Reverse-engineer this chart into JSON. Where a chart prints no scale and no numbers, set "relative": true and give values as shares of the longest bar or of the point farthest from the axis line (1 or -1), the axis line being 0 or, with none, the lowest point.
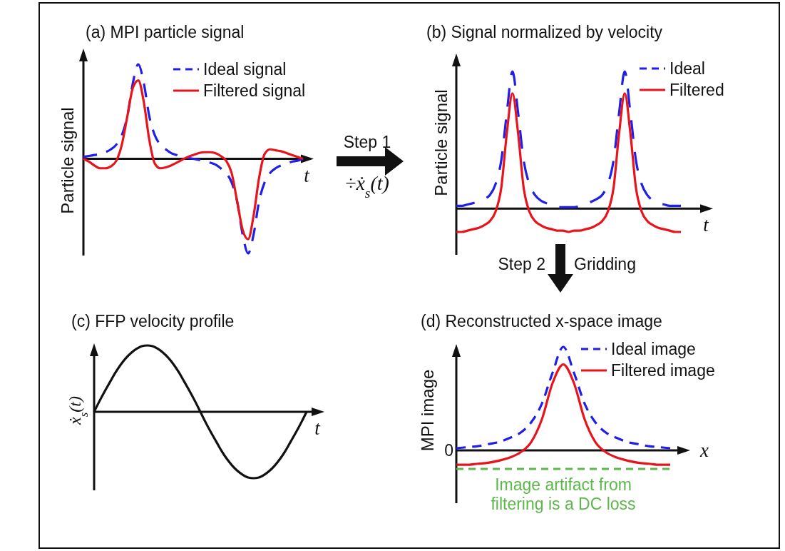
{
  "chart_data": [
    {
      "type": "line",
      "title": "(a) MPI particle signal",
      "xlabel": "t",
      "ylabel": "Particle signal",
      "relative": true,
      "legend": "top right",
      "categories": [
        null,
        null,
        null,
        null,
        null,
        null,
        null,
        null,
        null,
        null,
        null,
        null,
        null,
        null,
        null,
        null,
        null,
        null,
        null,
        null,
        null,
        null,
        null,
        null,
        null,
        null,
        null,
        null,
        null,
        null,
        null,
        null,
        null,
        null,
        null,
        null,
        null,
        null,
        null,
        null,
        null
      ],
      "series": [
        {
          "name": "Ideal signal",
          "color": "#1f1fe6",
          "line_style": "dashed",
          "values": [
            0.02,
            0.03,
            0.04,
            0.05,
            0.07,
            0.1,
            0.15,
            0.25,
            0.45,
            0.8,
            1.0,
            0.8,
            0.45,
            0.25,
            0.15,
            0.1,
            0.06,
            0.04,
            0.02,
            0.01,
            0,
            -0.01,
            -0.02,
            -0.04,
            -0.06,
            -0.1,
            -0.15,
            -0.25,
            -0.45,
            -0.8,
            -1.0,
            -0.8,
            -0.45,
            -0.25,
            -0.15,
            -0.1,
            -0.07,
            -0.05,
            -0.03,
            -0.02,
            0
          ]
        },
        {
          "name": "Filtered signal",
          "color": "#e8141c",
          "line_style": "solid",
          "values": [
            0,
            -0.03,
            -0.07,
            -0.1,
            -0.1,
            -0.08,
            -0.02,
            0.15,
            0.45,
            0.75,
            0.83,
            0.6,
            0.2,
            -0.05,
            -0.1,
            -0.09,
            -0.07,
            -0.04,
            -0.01,
            0.02,
            0.04,
            0.06,
            0.07,
            0.07,
            0.06,
            0.03,
            -0.02,
            -0.15,
            -0.45,
            -0.75,
            -0.85,
            -0.6,
            -0.2,
            0.05,
            0.1,
            0.09,
            0.08,
            0.06,
            0.04,
            0.02,
            0
          ]
        }
      ],
      "annotations": [
        "Step 1",
        "÷ẋ$_{s}$(t)"
      ]
    },
    {
      "type": "line",
      "title": "(b)  Signal normalized by velocity",
      "xlabel": "t",
      "ylabel": "Particle signal",
      "relative": true,
      "legend": "top right",
      "categories": [
        null,
        null,
        null,
        null,
        null,
        null,
        null,
        null,
        null,
        null,
        null,
        null,
        null,
        null,
        null,
        null,
        null,
        null,
        null,
        null,
        null,
        null,
        null,
        null,
        null,
        null,
        null,
        null,
        null,
        null,
        null,
        null,
        null,
        null,
        null,
        null,
        null,
        null,
        null,
        null,
        null
      ],
      "series": [
        {
          "name": "Ideal",
          "color": "#1f1fe6",
          "line_style": "dashed",
          "values": [
            0.02,
            0.02,
            0.03,
            0.04,
            0.05,
            0.07,
            0.1,
            0.18,
            0.35,
            0.7,
            1.0,
            0.7,
            0.35,
            0.18,
            0.1,
            0.06,
            0.04,
            0.02,
            0.01,
            0.01,
            0.01,
            0.01,
            0.02,
            0.03,
            0.05,
            0.07,
            0.1,
            0.18,
            0.35,
            0.7,
            1.0,
            0.7,
            0.35,
            0.18,
            0.1,
            0.06,
            0.04,
            0.03,
            0.02,
            0.02,
            0.02
          ]
        },
        {
          "name": "Filtered",
          "color": "#e8141c",
          "line_style": "solid",
          "values": [
            -0.17,
            -0.17,
            -0.16,
            -0.15,
            -0.14,
            -0.12,
            -0.09,
            -0.02,
            0.15,
            0.55,
            0.84,
            0.55,
            0.15,
            -0.02,
            -0.09,
            -0.12,
            -0.14,
            -0.15,
            -0.16,
            -0.16,
            -0.17,
            -0.16,
            -0.16,
            -0.15,
            -0.14,
            -0.12,
            -0.09,
            -0.02,
            0.15,
            0.55,
            0.84,
            0.55,
            0.15,
            -0.02,
            -0.09,
            -0.12,
            -0.14,
            -0.15,
            -0.16,
            -0.17,
            -0.17
          ]
        }
      ],
      "annotations": [
        "Step 2",
        "Gridding"
      ]
    },
    {
      "type": "line",
      "title": "(c)   FFP velocity profile",
      "xlabel": "t",
      "ylabel": "ẋ$_{s}$(t)",
      "relative": true,
      "categories": [
        null,
        null,
        null,
        null,
        null,
        null,
        null,
        null,
        null,
        null,
        null,
        null,
        null,
        null,
        null,
        null,
        null,
        null,
        null,
        null,
        null,
        null,
        null,
        null,
        null,
        null,
        null,
        null,
        null,
        null,
        null,
        null,
        null,
        null,
        null,
        null,
        null,
        null,
        null,
        null,
        null
      ],
      "series": [
        {
          "color": "#111111",
          "line_style": "solid",
          "values": [
            0,
            0.16,
            0.31,
            0.45,
            0.59,
            0.71,
            0.81,
            0.89,
            0.95,
            0.99,
            1,
            0.99,
            0.95,
            0.89,
            0.81,
            0.71,
            0.59,
            0.45,
            0.31,
            0.16,
            0,
            -0.16,
            -0.31,
            -0.45,
            -0.59,
            -0.71,
            -0.81,
            -0.89,
            -0.95,
            -0.99,
            -1,
            -0.99,
            -0.95,
            -0.89,
            -0.81,
            -0.71,
            -0.59,
            -0.45,
            -0.31,
            -0.16,
            0
          ]
        }
      ]
    },
    {
      "type": "line",
      "title": "(d) Reconstructed x-space image",
      "xlabel": "x",
      "ylabel": "MPI image",
      "relative": true,
      "legend": "top right",
      "categories": [
        null,
        null,
        null,
        null,
        null,
        null,
        null,
        null,
        null,
        null,
        null,
        null,
        null,
        null,
        null,
        null,
        null,
        null,
        null,
        null,
        null
      ],
      "series": [
        {
          "name": "Ideal image",
          "color": "#1f1fe6",
          "line_style": "dashed",
          "values": [
            0.02,
            0.03,
            0.04,
            0.06,
            0.08,
            0.12,
            0.17,
            0.27,
            0.45,
            0.75,
            1.0,
            0.75,
            0.45,
            0.27,
            0.17,
            0.12,
            0.08,
            0.06,
            0.04,
            0.03,
            0.02
          ]
        },
        {
          "name": "Filtered image",
          "color": "#e8141c",
          "line_style": "solid",
          "values": [
            -0.14,
            -0.14,
            -0.13,
            -0.12,
            -0.1,
            -0.07,
            -0.02,
            0.08,
            0.3,
            0.65,
            0.83,
            0.65,
            0.3,
            0.08,
            -0.02,
            -0.07,
            -0.1,
            -0.12,
            -0.13,
            -0.14,
            -0.14
          ]
        }
      ],
      "ref_lines": [
        {
          "axis": "y",
          "value": -0.18,
          "label": "Image artifact from filtering is a DC loss",
          "color": "#5cb84a",
          "line_style": "dashed"
        }
      ],
      "annotations": [
        "0"
      ]
    }
  ]
}
